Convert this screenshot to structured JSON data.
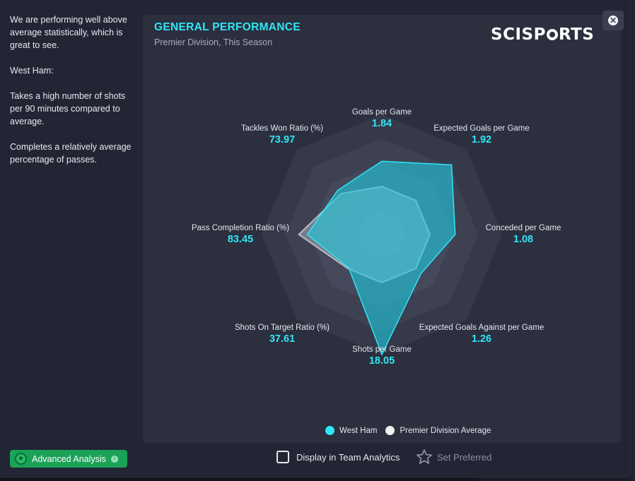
{
  "summary": {
    "paragraphs": [
      "We are performing well above average statistically, which is great to see.",
      "West Ham:",
      "Takes a high number of shots per 90 minutes compared to average.",
      "Completes a relatively average percentage of passes."
    ]
  },
  "panel": {
    "title": "GENERAL PERFORMANCE",
    "subtitle": "Premier Division, This Season",
    "logo_left": "SCISP",
    "logo_right": "RTS"
  },
  "chart_data": {
    "type": "radar",
    "axes": [
      {
        "label": "Goals per Game",
        "value": "1.84"
      },
      {
        "label": "Expected Goals per Game",
        "value": "1.92"
      },
      {
        "label": "Conceded per Game",
        "value": "1.08"
      },
      {
        "label": "Expected Goals Against per Game",
        "value": "1.26"
      },
      {
        "label": "Shots per Game",
        "value": "18.05"
      },
      {
        "label": "Shots On Target Ratio (%)",
        "value": "37.61"
      },
      {
        "label": "Pass Completion Ratio (%)",
        "value": "83.45"
      },
      {
        "label": "Tackles Won Ratio (%)",
        "value": "73.97"
      }
    ],
    "series": [
      {
        "name": "West Ham",
        "color": "#2ee6f7",
        "relative": [
          0.61,
          0.82,
          0.61,
          0.46,
          1.0,
          0.39,
          0.62,
          0.52
        ]
      },
      {
        "name": "Premier Division Average",
        "color": "#f2f2f2",
        "relative": [
          0.4,
          0.4,
          0.4,
          0.4,
          0.4,
          0.4,
          0.69,
          0.48
        ]
      }
    ],
    "rings": 5
  },
  "legend": {
    "team": "West Ham",
    "average": "Premier Division Average",
    "team_color": "#2ee6f7",
    "average_color": "#f2f2f2"
  },
  "footer": {
    "advanced_analysis": "Advanced Analysis",
    "display_in_team_analytics": "Display in Team Analytics",
    "display_checked": false,
    "set_preferred": "Set Preferred"
  },
  "icons": {
    "close": "close-icon",
    "advanced": "star-circle-icon",
    "info": "info-icon",
    "preferred": "star-outline-icon"
  }
}
